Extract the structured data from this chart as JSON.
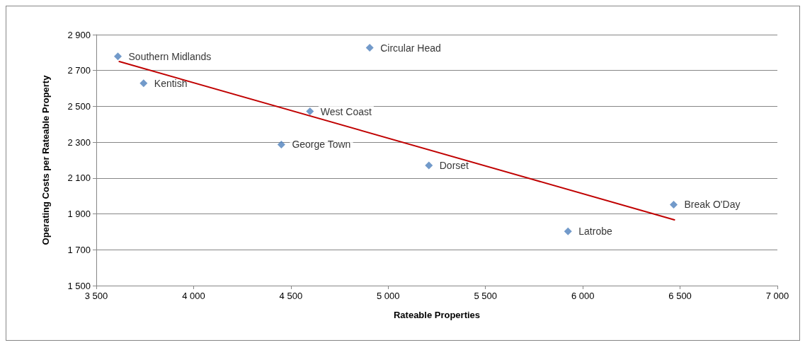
{
  "chart_data": {
    "type": "scatter",
    "xlabel": "Rateable Properties",
    "ylabel": "Operating Costs per Rateable Property",
    "series": [
      {
        "color": "#4f81bd",
        "marker": "diamond",
        "x": [
          3611,
          3743,
          4598,
          4451,
          4905,
          5209,
          5924,
          6467
        ],
        "values": [
          2779,
          2629,
          2472,
          2287,
          2827,
          2170,
          1803,
          1952
        ]
      },
      {
        "type": "line",
        "color": "#c00000",
        "marker": "none",
        "line_style": "solid",
        "x": [
          3618,
          6471
        ],
        "values": [
          2750,
          1867
        ]
      }
    ],
    "annotations": [
      {
        "text": "Southern Midlands",
        "x": 3611,
        "y": 2779
      },
      {
        "text": "Kentish",
        "x": 3743,
        "y": 2629
      },
      {
        "text": "West Coast",
        "x": 4598,
        "y": 2472
      },
      {
        "text": "George Town",
        "x": 4451,
        "y": 2287
      },
      {
        "text": "Circular Head",
        "x": 4905,
        "y": 2827
      },
      {
        "text": "Dorset",
        "x": 5209,
        "y": 2170
      },
      {
        "text": "Latrobe",
        "x": 5924,
        "y": 1803
      },
      {
        "text": "Break O'Day",
        "x": 6467,
        "y": 1952
      }
    ],
    "xlim": [
      3500,
      7000
    ],
    "xticks": [
      {
        "value": 3500,
        "label": "3 500"
      },
      {
        "value": 4000,
        "label": "4 000"
      },
      {
        "value": 4500,
        "label": "4 500"
      },
      {
        "value": 5000,
        "label": "5 000"
      },
      {
        "value": 5500,
        "label": "5 500"
      },
      {
        "value": 6000,
        "label": "6 000"
      },
      {
        "value": 6500,
        "label": "6 500"
      },
      {
        "value": 7000,
        "label": "7 000"
      }
    ],
    "ylim": [
      1500,
      2900
    ],
    "yticks": [
      {
        "value": 1500,
        "label": "1 500"
      },
      {
        "value": 1700,
        "label": "1 700"
      },
      {
        "value": 1900,
        "label": "1 900"
      },
      {
        "value": 2100,
        "label": "2 100"
      },
      {
        "value": 2300,
        "label": "2 300"
      },
      {
        "value": 2500,
        "label": "2 500"
      },
      {
        "value": 2700,
        "label": "2 700"
      },
      {
        "value": 2900,
        "label": "2 900"
      }
    ],
    "grid": "y"
  }
}
